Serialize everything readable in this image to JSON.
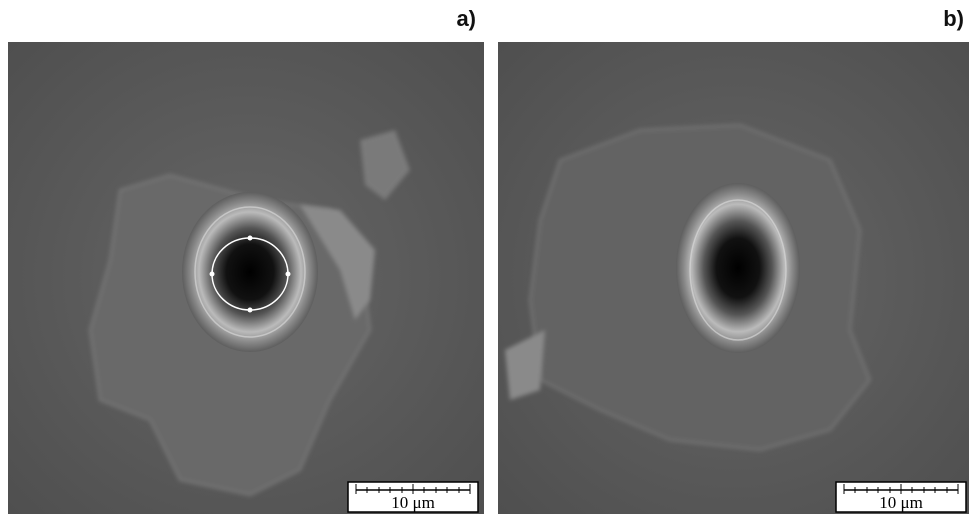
{
  "panels": [
    {
      "label": "a)",
      "scale_bar": "10 μm"
    },
    {
      "label": "b)",
      "scale_bar": "10 μm"
    }
  ]
}
